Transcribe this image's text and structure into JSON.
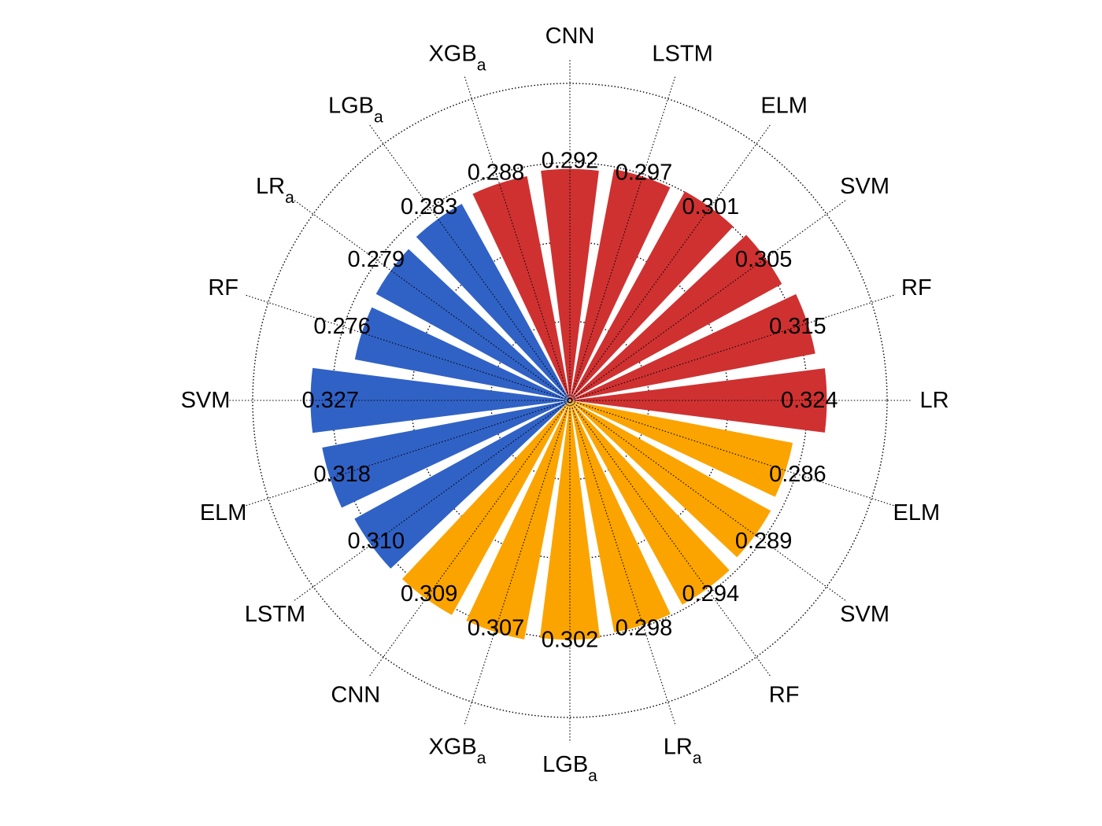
{
  "chart_data": {
    "type": "polar-bar",
    "rmax": 0.4,
    "rings": [
      0.1,
      0.2,
      0.3,
      0.4
    ],
    "grid": true,
    "colors": {
      "red": "#cf3131",
      "blue": "#3062c6",
      "orange": "#fba400"
    },
    "bars": [
      {
        "label": "LR",
        "sub": "",
        "value": 0.324,
        "value_text": "0.324",
        "color": "red"
      },
      {
        "label": "RF",
        "sub": "",
        "value": 0.315,
        "value_text": "0.315",
        "color": "red"
      },
      {
        "label": "SVM",
        "sub": "",
        "value": 0.305,
        "value_text": "0.305",
        "color": "red"
      },
      {
        "label": "ELM",
        "sub": "",
        "value": 0.301,
        "value_text": "0.301",
        "color": "red"
      },
      {
        "label": "LSTM",
        "sub": "",
        "value": 0.297,
        "value_text": "0.297",
        "color": "red"
      },
      {
        "label": "CNN",
        "sub": "",
        "value": 0.292,
        "value_text": "0.292",
        "color": "red"
      },
      {
        "label": "XGB",
        "sub": "a",
        "value": 0.288,
        "value_text": "0.288",
        "color": "red"
      },
      {
        "label": "LGB",
        "sub": "a",
        "value": 0.283,
        "value_text": "0.283",
        "color": "blue"
      },
      {
        "label": "LR",
        "sub": "a",
        "value": 0.279,
        "value_text": "0.279",
        "color": "blue"
      },
      {
        "label": "RF",
        "sub": "",
        "value": 0.276,
        "value_text": "0.276",
        "color": "blue"
      },
      {
        "label": "SVM",
        "sub": "",
        "value": 0.327,
        "value_text": "0.327",
        "color": "blue"
      },
      {
        "label": "ELM",
        "sub": "",
        "value": 0.318,
        "value_text": "0.318",
        "color": "blue"
      },
      {
        "label": "LSTM",
        "sub": "",
        "value": 0.31,
        "value_text": "0.310",
        "color": "blue"
      },
      {
        "label": "CNN",
        "sub": "",
        "value": 0.309,
        "value_text": "0.309",
        "color": "orange"
      },
      {
        "label": "XGB",
        "sub": "a",
        "value": 0.307,
        "value_text": "0.307",
        "color": "orange"
      },
      {
        "label": "LGB",
        "sub": "a",
        "value": 0.302,
        "value_text": "0.302",
        "color": "orange"
      },
      {
        "label": "LR",
        "sub": "a",
        "value": 0.298,
        "value_text": "0.298",
        "color": "orange"
      },
      {
        "label": "RF",
        "sub": "",
        "value": 0.294,
        "value_text": "0.294",
        "color": "orange"
      },
      {
        "label": "SVM",
        "sub": "",
        "value": 0.289,
        "value_text": "0.289",
        "color": "orange"
      },
      {
        "label": "ELM",
        "sub": "",
        "value": 0.286,
        "value_text": "0.286",
        "color": "orange"
      }
    ]
  }
}
